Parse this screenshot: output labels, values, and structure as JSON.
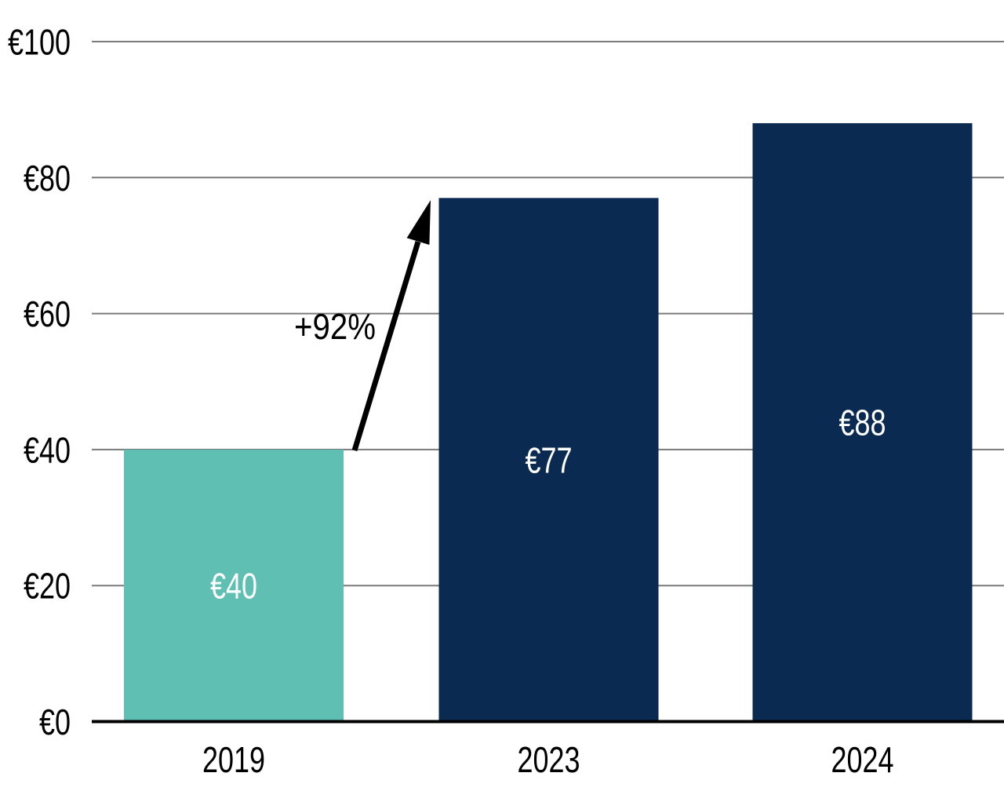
{
  "chart_data": {
    "type": "bar",
    "categories": [
      "2019",
      "2023",
      "2024"
    ],
    "values": [
      40,
      77,
      88
    ],
    "bar_value_labels": [
      "€40",
      "€77",
      "€88"
    ],
    "bar_colors": [
      "#5FBFB2",
      "#0A2A52",
      "#0A2A52"
    ],
    "y_ticks": [
      0,
      20,
      40,
      60,
      80,
      100
    ],
    "y_tick_labels": [
      "€0",
      "€20",
      "€40",
      "€60",
      "€80",
      "€100"
    ],
    "ylim": [
      0,
      100
    ],
    "grid": true,
    "legend": "none",
    "title": "",
    "xlabel": "",
    "ylabel": "",
    "annotation": {
      "text": "+92%",
      "from_category": "2019",
      "to_category": "2023"
    },
    "colors": {
      "teal_bar": "#5FBFB2",
      "navy_bar": "#0A2A52",
      "gridline": "#7a7a7a",
      "axis_line": "#000000",
      "bar_label_text": "#ffffff",
      "axis_label_text": "#000000",
      "annotation_arrow": "#000000",
      "background": "#ffffff"
    }
  }
}
